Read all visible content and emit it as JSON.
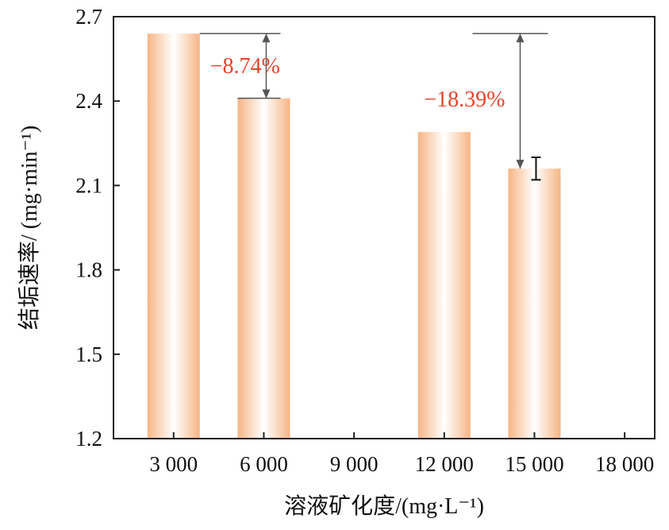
{
  "chart_data": {
    "type": "bar",
    "x_tick_labels": [
      "3 000",
      "6 000",
      "9 000",
      "12 000",
      "15 000",
      "18 000"
    ],
    "x_ticks": [
      3000,
      6000,
      9000,
      12000,
      15000,
      18000
    ],
    "x": [
      3000,
      6000,
      12000,
      15000
    ],
    "values": [
      2.64,
      2.41,
      2.29,
      2.16
    ],
    "error_bars": [
      null,
      null,
      null,
      0.04
    ],
    "xlabel": "溶液矿化度/(mg·L⁻¹)",
    "ylabel": "结垢速率/ (mg·min⁻¹)",
    "y_tick_labels": [
      "1.2",
      "1.5",
      "1.8",
      "2.1",
      "2.4",
      "2.7"
    ],
    "y_ticks": [
      1.2,
      1.5,
      1.8,
      2.1,
      2.4,
      2.7
    ],
    "ylim": [
      1.2,
      2.7
    ],
    "xlim": [
      1000,
      19000
    ],
    "grid": false,
    "annotations": [
      {
        "text": "−8.74%",
        "from_x": 3000,
        "to_x": 6000,
        "from_value": 2.64,
        "to_value": 2.41
      },
      {
        "text": "−18.39%",
        "from_x": 15000,
        "to_x": 15000,
        "from_value": 2.64,
        "to_value": 2.16
      }
    ],
    "colors": {
      "bar_edge": "#f6b585",
      "bar_center": "#ffffff",
      "annotation": "#e5442c",
      "arrow": "#555555"
    }
  }
}
